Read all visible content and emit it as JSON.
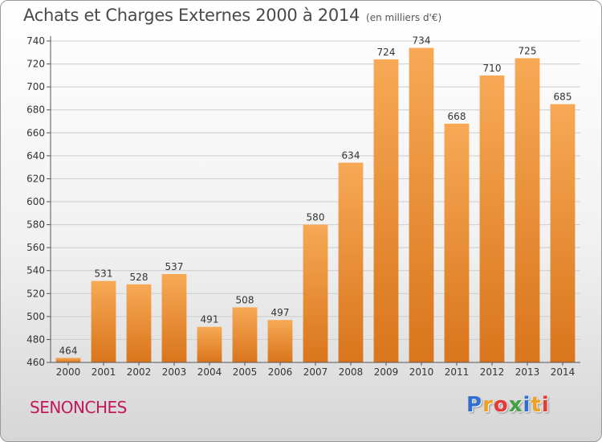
{
  "header": {
    "title": "Achats et Charges Externes 2000 à 2014",
    "unit": "(en milliers d'€)"
  },
  "footer": {
    "place": "SENONCHES",
    "logo_text": "Proxiti",
    "logo_letters": [
      {
        "ch": "P",
        "color": "#2f6fd1"
      },
      {
        "ch": "r",
        "color": "#f0a020"
      },
      {
        "ch": "o",
        "color": "#e53935"
      },
      {
        "ch": "x",
        "color": "#43a047"
      },
      {
        "ch": "i",
        "color": "#2f6fd1"
      },
      {
        "ch": "t",
        "color": "#f0a020"
      },
      {
        "ch": "i",
        "color": "#e53935"
      }
    ]
  },
  "colors": {
    "bar_light": "#f7a955",
    "bar_dark": "#d9751c",
    "grid": "#cccccc",
    "axis": "#555555"
  },
  "chart_data": {
    "type": "bar",
    "title": "Achats et Charges Externes 2000 à 2014",
    "unit": "(en milliers d'€)",
    "categories": [
      "2000",
      "2001",
      "2002",
      "2003",
      "2004",
      "2005",
      "2006",
      "2007",
      "2008",
      "2009",
      "2010",
      "2011",
      "2012",
      "2013",
      "2014"
    ],
    "values": [
      464,
      531,
      528,
      537,
      491,
      508,
      497,
      580,
      634,
      724,
      734,
      668,
      710,
      725,
      685
    ],
    "ylim": [
      460,
      740
    ],
    "yticks": [
      460,
      480,
      500,
      520,
      540,
      560,
      580,
      600,
      620,
      640,
      660,
      680,
      700,
      720,
      740
    ],
    "grid": true,
    "legend": "none"
  }
}
